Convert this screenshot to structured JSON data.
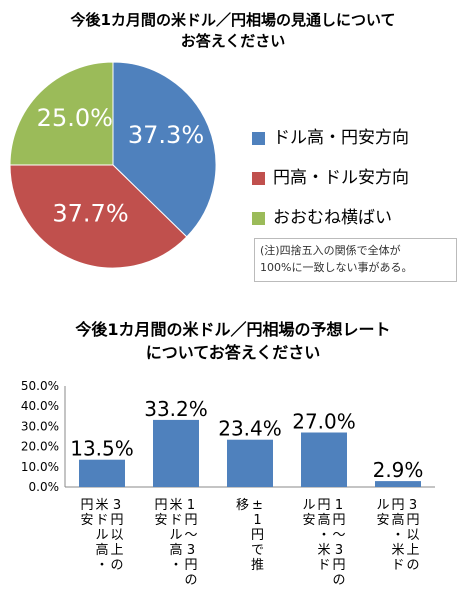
{
  "colors": {
    "blue": "#4f81bd",
    "red": "#c0504d",
    "green": "#9bbb59",
    "label_text": "#ffffff",
    "axis": "#888888",
    "grid": "#d9d9d9"
  },
  "note": {
    "line1": "(注)四捨五入の関係で全体が",
    "line2": "100%に一致しない事がある。"
  },
  "chart_data": [
    {
      "type": "pie",
      "title_lines": [
        "今後1カ月間の米ドル／円相場の見通しについて",
        "お答えください"
      ],
      "slices": [
        {
          "label": "ドル高・円安方向",
          "value": 37.3,
          "value_label": "37.3%",
          "color": "#4f81bd"
        },
        {
          "label": "円高・ドル安方向",
          "value": 37.7,
          "value_label": "37.7%",
          "color": "#c0504d"
        },
        {
          "label": "おおむね横ばい",
          "value": 25.0,
          "value_label": "25.0%",
          "color": "#9bbb59"
        }
      ],
      "legend_position": "right"
    },
    {
      "type": "bar",
      "title_lines": [
        "今後1カ月間の米ドル／円相場の予想レート",
        "についてお答えください"
      ],
      "categories": [
        "3円以上の米ドル高・円安",
        "1円～3円の米ドル高・円安",
        "±1円で推移",
        "1円～3円の円高・米ドル安",
        "3円以上の円高・米ドル安"
      ],
      "category_columns": [
        [
          "3円以上の",
          "米ドル高・",
          "円安"
        ],
        [
          "1円～3円の",
          "米ドル高・",
          "円安"
        ],
        [
          "±1円で推",
          "移"
        ],
        [
          "1円～3円の",
          "円高・米ド",
          "ル安"
        ],
        [
          "3円以上の",
          "円高・米ド",
          "ル安"
        ]
      ],
      "values": [
        13.5,
        33.2,
        23.4,
        27.0,
        2.9
      ],
      "value_labels": [
        "13.5%",
        "33.2%",
        "23.4%",
        "27.0%",
        "2.9%"
      ],
      "ylim": [
        0,
        50
      ],
      "yticks": [
        "0.0%",
        "10.0%",
        "20.0%",
        "30.0%",
        "40.0%",
        "50.0%"
      ],
      "color": "#4f81bd",
      "grid": false
    }
  ]
}
